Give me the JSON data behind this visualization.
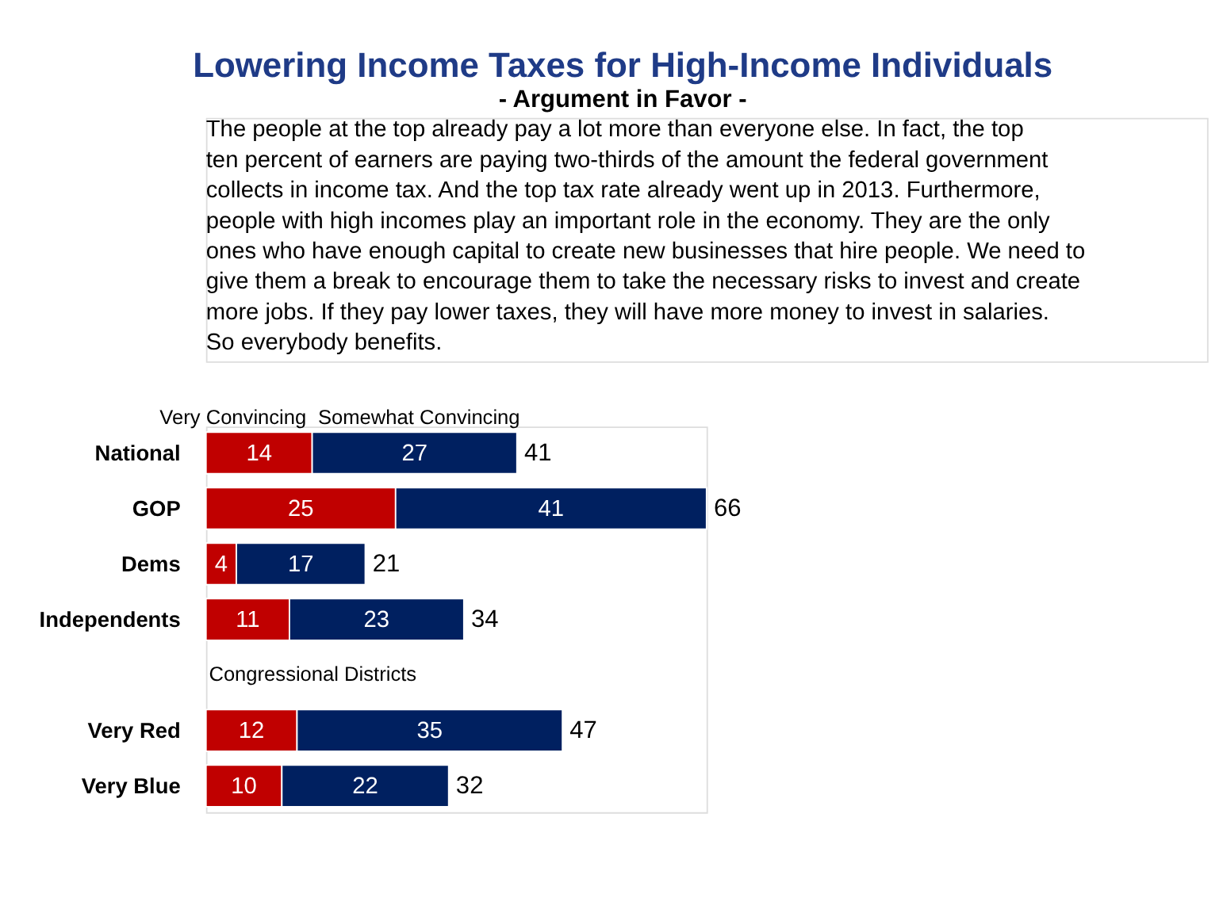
{
  "chart_data": {
    "type": "bar",
    "orientation": "horizontal",
    "stacked": true,
    "data_labels": true,
    "title": "Lowering Income Taxes for High-Income Individuals",
    "subtitle": "- Argument in Favor -",
    "annotations": [
      "The people at the top already pay a lot more than everyone else. In fact, the top ten percent of earners are paying two-thirds of the amount the federal government collects in income tax. And the top tax rate already went up in 2013. Furthermore, people with high incomes play an important role in the economy. They are the only ones who have enough capital to create new businesses that hire people. We need to give them a break to encourage them to take the necessary risks to invest and create more jobs. If they pay lower taxes, they will have more money to invest in salaries. So everybody benefits.",
      "Congressional Districts"
    ],
    "categories": [
      "National",
      "GOP",
      "Dems",
      "Independents",
      null,
      "Very Red",
      "Very Blue"
    ],
    "series": [
      {
        "name": "Very Convincing",
        "color": "#c00000",
        "values": [
          14,
          25,
          4,
          11,
          null,
          12,
          10
        ]
      },
      {
        "name": "Somewhat Convincing",
        "color": "#002060",
        "values": [
          27,
          41,
          17,
          23,
          null,
          35,
          22
        ]
      }
    ],
    "totals": [
      "41",
      "66",
      "21",
      "34",
      null,
      "47",
      "32"
    ]
  }
}
